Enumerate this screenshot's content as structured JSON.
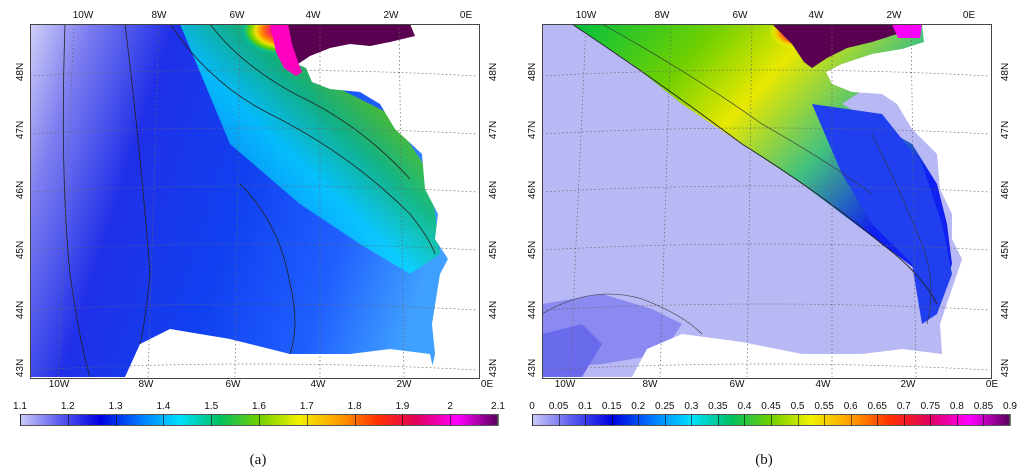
{
  "panels": [
    {
      "id": "a",
      "caption": "(a)",
      "lon_labels_top": [
        "10W",
        "8W",
        "6W",
        "4W",
        "2W",
        "0E"
      ],
      "lon_labels_bottom": [
        "10W",
        "8W",
        "6W",
        "4W",
        "2W",
        "0E"
      ],
      "lat_labels": [
        "48N",
        "47N",
        "46N",
        "45N",
        "44N",
        "43N"
      ],
      "colorbar": {
        "min": 1.1,
        "max": 2.1,
        "ticks": [
          "1.1",
          "1.2",
          "1.3",
          "1.4",
          "1.5",
          "1.6",
          "1.7",
          "1.8",
          "1.9",
          "2",
          "2.1"
        ]
      }
    },
    {
      "id": "b",
      "caption": "(b)",
      "lon_labels_top": [
        "10W",
        "8W",
        "6W",
        "4W",
        "2W",
        "0E"
      ],
      "lon_labels_bottom": [
        "10W",
        "8W",
        "6W",
        "4W",
        "2W",
        "0E"
      ],
      "lat_labels": [
        "48N",
        "47N",
        "46N",
        "45N",
        "44N",
        "43N"
      ],
      "colorbar": {
        "min": 0,
        "max": 0.9,
        "ticks": [
          "0",
          "0.05",
          "0.1",
          "0.15",
          "0.2",
          "0.25",
          "0.3",
          "0.35",
          "0.4",
          "0.45",
          "0.5",
          "0.55",
          "0.6",
          "0.65",
          "0.7",
          "0.75",
          "0.8",
          "0.85",
          "0.9"
        ]
      }
    }
  ],
  "colormap": [
    "#c8c8f8",
    "#5a5af0",
    "#0000e0",
    "#0078ff",
    "#00e0ff",
    "#00c060",
    "#70d000",
    "#f0f000",
    "#ffa000",
    "#ff3000",
    "#e00060",
    "#ff00ff",
    "#600060"
  ]
}
